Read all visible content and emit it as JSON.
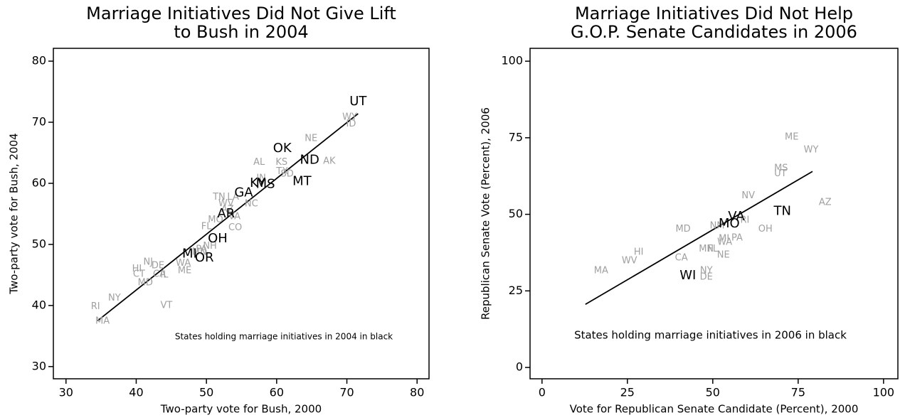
{
  "chart_data": [
    {
      "type": "scatter",
      "title_lines": [
        "Marriage Initiatives Did Not Give Lift",
        "to Bush in 2004"
      ],
      "xlabel": "Two-party vote for Bush, 2000",
      "ylabel": "Two-party vote for Bush, 2004",
      "annotation": "States holding marriage initiatives in 2004 in black",
      "xlim": [
        28.2,
        81.7
      ],
      "ylim": [
        28.0,
        82.1
      ],
      "xticks": [
        30,
        40,
        50,
        60,
        70,
        80
      ],
      "yticks": [
        30,
        40,
        50,
        60,
        70,
        80
      ],
      "fit_line": {
        "color": "#000000",
        "x": [
          34.5,
          71.6
        ],
        "values": [
          37.5,
          71.4
        ]
      },
      "series": [
        {
          "color": "#000000",
          "size": "large",
          "labels": [
            "UT",
            "OK",
            "ND",
            "MT",
            "KY",
            "MS",
            "GA",
            "AR",
            "OH",
            "MI",
            "OR"
          ],
          "x": [
            71.6,
            60.8,
            64.7,
            63.6,
            57.3,
            58.4,
            55.3,
            52.8,
            51.6,
            47.6,
            49.7
          ],
          "values": [
            73.4,
            65.7,
            63.8,
            60.3,
            60.0,
            59.8,
            58.4,
            55.0,
            50.9,
            48.4,
            47.8
          ]
        },
        {
          "color": "#a0a0a0",
          "size": "small",
          "labels": [
            "WY",
            "ID",
            "NE",
            "AK",
            "AL",
            "KS",
            "TX",
            "SD",
            "IN",
            "TN",
            "LA",
            "WV",
            "AZ",
            "NC",
            "MO",
            "VA",
            "FL",
            "CO",
            "PA",
            "NH",
            "MN",
            "NJ",
            "DE",
            "HI",
            "CT",
            "CA",
            "IL",
            "WA",
            "ME",
            "MD",
            "NY",
            "VT",
            "RI",
            "MA"
          ],
          "x": [
            70.4,
            70.6,
            64.9,
            67.5,
            57.5,
            60.7,
            60.8,
            61.5,
            57.8,
            51.8,
            53.8,
            52.8,
            53.0,
            56.4,
            51.3,
            54.0,
            50.0,
            54.1,
            49.3,
            50.5,
            49.0,
            41.7,
            43.1,
            40.1,
            40.4,
            43.3,
            44.0,
            46.7,
            46.9,
            41.3,
            36.9,
            44.3,
            34.2,
            35.2
          ],
          "values": [
            70.8,
            69.7,
            67.3,
            63.6,
            63.4,
            63.4,
            61.9,
            61.5,
            60.8,
            57.7,
            57.7,
            56.7,
            55.7,
            56.6,
            54.0,
            54.5,
            52.9,
            52.7,
            49.2,
            49.7,
            48.7,
            47.1,
            46.5,
            46.0,
            45.1,
            45.1,
            45.0,
            46.9,
            45.7,
            43.7,
            41.2,
            40.0,
            39.8,
            37.4
          ]
        }
      ]
    },
    {
      "type": "scatter",
      "title_lines": [
        "Marriage Initiatives Did Not Help",
        "G.O.P. Senate Candidates in 2006"
      ],
      "xlabel": "Vote for Republican Senate Candidate (Percent), 2000",
      "ylabel": "Republican Senate Vote (Percent), 2006",
      "annotation": "States holding marriage initiatives in 2006 in black",
      "xlim": [
        -3.5,
        104.2
      ],
      "ylim": [
        -3.7,
        104.2
      ],
      "xticks": [
        0,
        25,
        50,
        75,
        100
      ],
      "yticks": [
        0,
        25,
        50,
        75,
        100
      ],
      "fit_line": {
        "color": "#000000",
        "x": [
          12.7,
          79.2
        ],
        "values": [
          20.6,
          64.0
        ]
      },
      "series": [
        {
          "color": "#000000",
          "size": "large",
          "labels": [
            "TN",
            "VA",
            "MO",
            "WI"
          ],
          "x": [
            70.4,
            56.9,
            54.8,
            42.7
          ],
          "values": [
            51.0,
            49.2,
            46.9,
            29.9
          ]
        },
        {
          "color": "#a0a0a0",
          "size": "small",
          "labels": [
            "ME",
            "WY",
            "MS",
            "UT",
            "AZ",
            "NV",
            "MD",
            "OH",
            "RI",
            "NM",
            "MI",
            "PA",
            "WA",
            "MN",
            "FL",
            "NE",
            "HI",
            "CA",
            "WV",
            "MA",
            "NY",
            "DE"
          ],
          "x": [
            73.1,
            78.8,
            70.0,
            69.8,
            82.9,
            60.4,
            41.3,
            65.4,
            59.4,
            51.3,
            53.3,
            57.1,
            53.5,
            48.1,
            50.0,
            53.1,
            28.3,
            40.8,
            25.6,
            17.3,
            48.1,
            48.1
          ],
          "values": [
            75.2,
            71.0,
            65.0,
            63.3,
            53.8,
            56.1,
            45.2,
            45.2,
            48.0,
            46.2,
            42.0,
            42.2,
            40.8,
            38.7,
            38.7,
            36.7,
            37.6,
            35.7,
            34.8,
            31.6,
            31.6,
            29.5
          ]
        }
      ]
    }
  ]
}
